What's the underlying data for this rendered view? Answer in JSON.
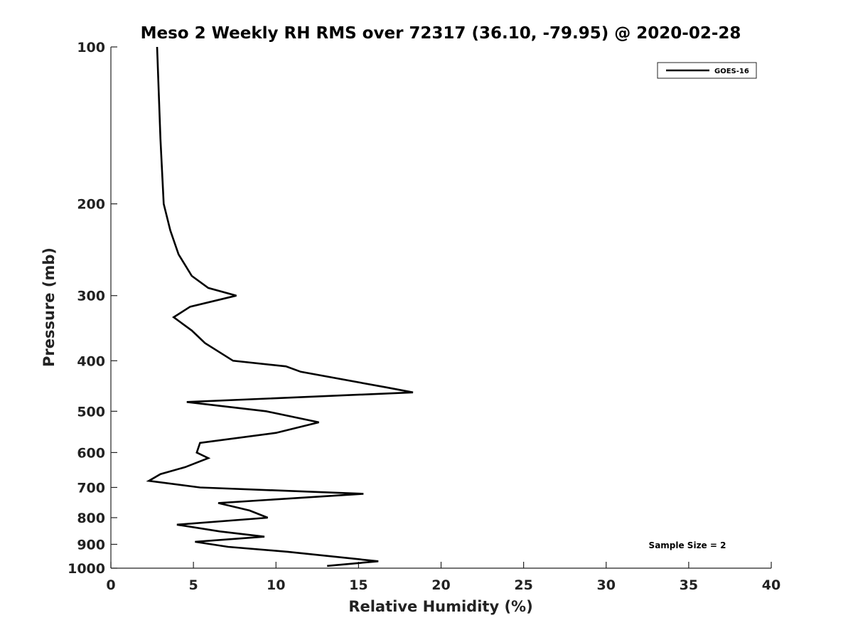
{
  "chart_data": {
    "type": "line",
    "title": "Meso 2 Weekly RH RMS over 72317 (36.10, -79.95) @ 2020-02-28",
    "xlabel": "Relative Humidity (%)",
    "ylabel": "Pressure (mb)",
    "xlim": [
      0,
      40
    ],
    "ylim": [
      1000,
      100
    ],
    "yscale": "log",
    "x_ticks": [
      "0",
      "5",
      "10",
      "15",
      "20",
      "25",
      "30",
      "35",
      "40"
    ],
    "y_ticks": [
      "100",
      "200",
      "300",
      "400",
      "500",
      "600",
      "700",
      "800",
      "900",
      "1000"
    ],
    "grid": false,
    "legend": {
      "position": "top-right",
      "entries": [
        "GOES-16"
      ]
    },
    "annotation": "Sample Size = 2",
    "series": [
      {
        "name": "GOES-16",
        "color": "#000000",
        "points": [
          [
            2.8,
            100
          ],
          [
            3.0,
            150
          ],
          [
            3.2,
            200
          ],
          [
            3.6,
            225
          ],
          [
            4.1,
            250
          ],
          [
            4.9,
            275
          ],
          [
            5.9,
            290
          ],
          [
            7.6,
            300
          ],
          [
            4.8,
            315
          ],
          [
            3.8,
            330
          ],
          [
            4.9,
            350
          ],
          [
            5.7,
            370
          ],
          [
            7.4,
            400
          ],
          [
            10.6,
            410
          ],
          [
            11.5,
            420
          ],
          [
            16.7,
            450
          ],
          [
            18.3,
            460
          ],
          [
            4.6,
            480
          ],
          [
            9.4,
            500
          ],
          [
            12.6,
            525
          ],
          [
            10.0,
            550
          ],
          [
            5.4,
            575
          ],
          [
            5.2,
            600
          ],
          [
            5.9,
            615
          ],
          [
            4.5,
            640
          ],
          [
            3.0,
            660
          ],
          [
            2.3,
            680
          ],
          [
            5.4,
            700
          ],
          [
            15.3,
            720
          ],
          [
            6.5,
            750
          ],
          [
            8.4,
            775
          ],
          [
            9.5,
            800
          ],
          [
            4.0,
            825
          ],
          [
            6.6,
            850
          ],
          [
            9.3,
            870
          ],
          [
            5.1,
            890
          ],
          [
            7.1,
            910
          ],
          [
            10.7,
            930
          ],
          [
            16.2,
            970
          ],
          [
            13.1,
            990
          ]
        ]
      }
    ]
  }
}
